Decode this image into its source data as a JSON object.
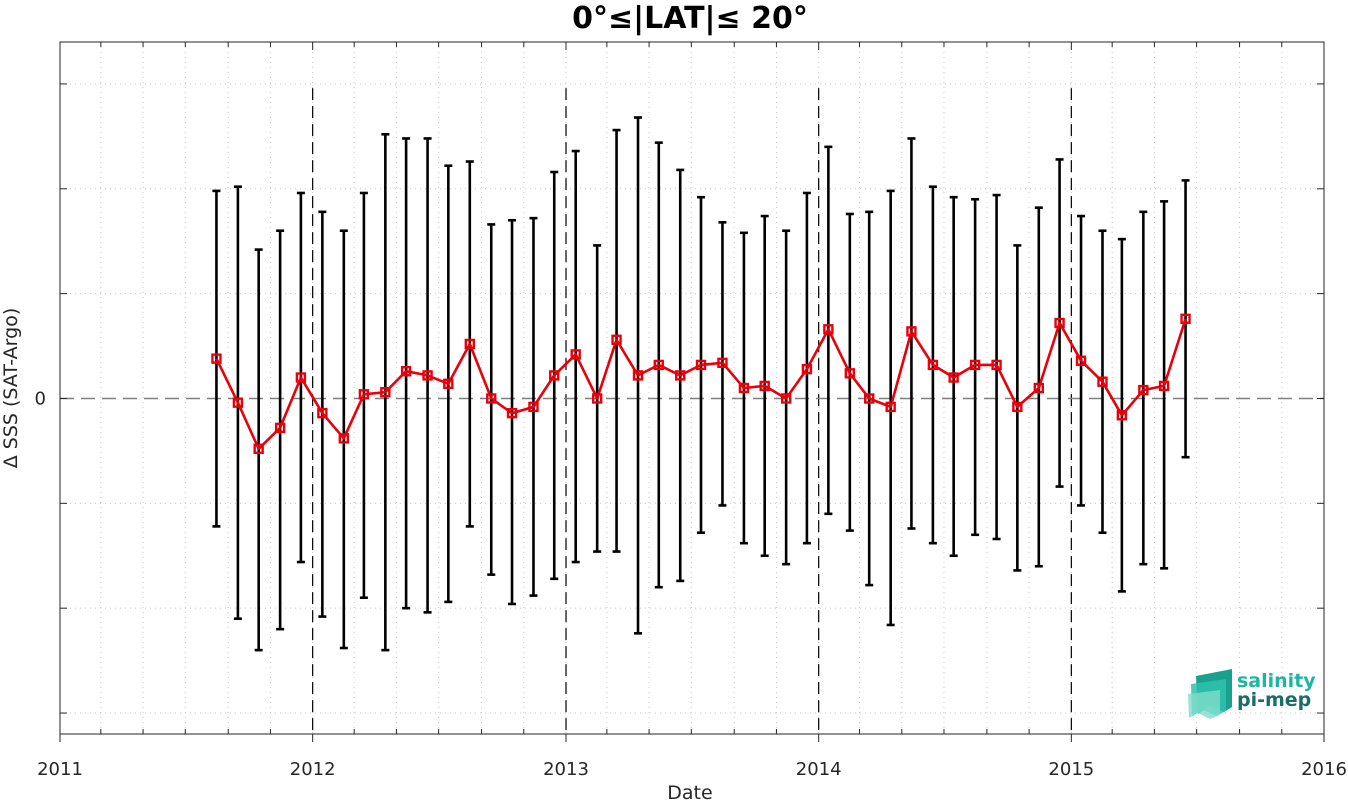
{
  "chart_data": {
    "type": "line",
    "title": "0°≤|LAT|≤ 20°",
    "xlabel": "Date",
    "ylabel": "Δ SSS (SAT-Argo)",
    "xlim": [
      "2011-01-01",
      "2016-01-01"
    ],
    "ylim": [
      -0.16,
      0.17
    ],
    "x_ticks": [
      {
        "date": "2011-01-01",
        "label": "2011"
      },
      {
        "date": "2012-01-01",
        "label": "2012"
      },
      {
        "date": "2013-01-01",
        "label": "2013"
      },
      {
        "date": "2014-01-01",
        "label": "2014"
      },
      {
        "date": "2015-01-01",
        "label": "2015"
      },
      {
        "date": "2016-01-01",
        "label": "2016"
      }
    ],
    "y_ticks": [
      {
        "value": 0,
        "label": "0"
      }
    ],
    "y_minor_ticks": [
      -0.15,
      -0.1,
      -0.05,
      0.05,
      0.1,
      0.15
    ],
    "zero_line": {
      "value": 0,
      "color": "#808080",
      "style": "dashed"
    },
    "year_markers": [
      "2012-01-01",
      "2013-01-01",
      "2014-01-01",
      "2015-01-01"
    ],
    "grid": "dotted",
    "series": [
      {
        "color": "#e8000b",
        "errorbar_color": "#000000",
        "marker": "square",
        "points": [
          {
            "x": "2011-08-15",
            "y": 0.019,
            "ymin": -0.061,
            "ymax": 0.099
          },
          {
            "x": "2011-09-15",
            "y": -0.002,
            "ymin": -0.105,
            "ymax": 0.101
          },
          {
            "x": "2011-10-15",
            "y": -0.024,
            "ymin": -0.12,
            "ymax": 0.071
          },
          {
            "x": "2011-11-15",
            "y": -0.014,
            "ymin": -0.11,
            "ymax": 0.08
          },
          {
            "x": "2011-12-15",
            "y": 0.01,
            "ymin": -0.078,
            "ymax": 0.098
          },
          {
            "x": "2012-01-15",
            "y": -0.007,
            "ymin": -0.104,
            "ymax": 0.089
          },
          {
            "x": "2012-02-15",
            "y": -0.019,
            "ymin": -0.119,
            "ymax": 0.08
          },
          {
            "x": "2012-03-15",
            "y": 0.002,
            "ymin": -0.095,
            "ymax": 0.098
          },
          {
            "x": "2012-04-15",
            "y": 0.003,
            "ymin": -0.12,
            "ymax": 0.126
          },
          {
            "x": "2012-05-15",
            "y": 0.013,
            "ymin": -0.1,
            "ymax": 0.124
          },
          {
            "x": "2012-06-15",
            "y": 0.011,
            "ymin": -0.102,
            "ymax": 0.124
          },
          {
            "x": "2012-07-15",
            "y": 0.007,
            "ymin": -0.097,
            "ymax": 0.111
          },
          {
            "x": "2012-08-15",
            "y": 0.026,
            "ymin": -0.061,
            "ymax": 0.113
          },
          {
            "x": "2012-09-15",
            "y": 0.0,
            "ymin": -0.084,
            "ymax": 0.083
          },
          {
            "x": "2012-10-15",
            "y": -0.007,
            "ymin": -0.098,
            "ymax": 0.085
          },
          {
            "x": "2012-11-15",
            "y": -0.004,
            "ymin": -0.094,
            "ymax": 0.086
          },
          {
            "x": "2012-12-15",
            "y": 0.011,
            "ymin": -0.086,
            "ymax": 0.108
          },
          {
            "x": "2013-01-15",
            "y": 0.021,
            "ymin": -0.078,
            "ymax": 0.118
          },
          {
            "x": "2013-02-15",
            "y": 0.0,
            "ymin": -0.073,
            "ymax": 0.073
          },
          {
            "x": "2013-03-15",
            "y": 0.028,
            "ymin": -0.073,
            "ymax": 0.128
          },
          {
            "x": "2013-04-15",
            "y": 0.011,
            "ymin": -0.112,
            "ymax": 0.134
          },
          {
            "x": "2013-05-15",
            "y": 0.016,
            "ymin": -0.09,
            "ymax": 0.122
          },
          {
            "x": "2013-06-15",
            "y": 0.011,
            "ymin": -0.087,
            "ymax": 0.109
          },
          {
            "x": "2013-07-15",
            "y": 0.016,
            "ymin": -0.064,
            "ymax": 0.096
          },
          {
            "x": "2013-08-15",
            "y": 0.017,
            "ymin": -0.051,
            "ymax": 0.084
          },
          {
            "x": "2013-09-15",
            "y": 0.005,
            "ymin": -0.069,
            "ymax": 0.079
          },
          {
            "x": "2013-10-15",
            "y": 0.006,
            "ymin": -0.075,
            "ymax": 0.087
          },
          {
            "x": "2013-11-15",
            "y": 0.0,
            "ymin": -0.079,
            "ymax": 0.08
          },
          {
            "x": "2013-12-15",
            "y": 0.014,
            "ymin": -0.069,
            "ymax": 0.098
          },
          {
            "x": "2014-01-15",
            "y": 0.033,
            "ymin": -0.055,
            "ymax": 0.12
          },
          {
            "x": "2014-02-15",
            "y": 0.012,
            "ymin": -0.063,
            "ymax": 0.088
          },
          {
            "x": "2014-03-15",
            "y": 0.0,
            "ymin": -0.089,
            "ymax": 0.089
          },
          {
            "x": "2014-04-15",
            "y": -0.004,
            "ymin": -0.108,
            "ymax": 0.099
          },
          {
            "x": "2014-05-15",
            "y": 0.032,
            "ymin": -0.062,
            "ymax": 0.124
          },
          {
            "x": "2014-06-15",
            "y": 0.016,
            "ymin": -0.069,
            "ymax": 0.101
          },
          {
            "x": "2014-07-15",
            "y": 0.01,
            "ymin": -0.075,
            "ymax": 0.096
          },
          {
            "x": "2014-08-15",
            "y": 0.016,
            "ymin": -0.065,
            "ymax": 0.095
          },
          {
            "x": "2014-09-15",
            "y": 0.016,
            "ymin": -0.067,
            "ymax": 0.097
          },
          {
            "x": "2014-10-15",
            "y": -0.004,
            "ymin": -0.082,
            "ymax": 0.073
          },
          {
            "x": "2014-11-15",
            "y": 0.005,
            "ymin": -0.08,
            "ymax": 0.091
          },
          {
            "x": "2014-12-15",
            "y": 0.036,
            "ymin": -0.042,
            "ymax": 0.114
          },
          {
            "x": "2015-01-15",
            "y": 0.018,
            "ymin": -0.051,
            "ymax": 0.087
          },
          {
            "x": "2015-02-15",
            "y": 0.008,
            "ymin": -0.064,
            "ymax": 0.08
          },
          {
            "x": "2015-03-15",
            "y": -0.008,
            "ymin": -0.092,
            "ymax": 0.076
          },
          {
            "x": "2015-04-15",
            "y": 0.004,
            "ymin": -0.079,
            "ymax": 0.089
          },
          {
            "x": "2015-05-15",
            "y": 0.006,
            "ymin": -0.081,
            "ymax": 0.094
          },
          {
            "x": "2015-06-15",
            "y": 0.038,
            "ymin": -0.028,
            "ymax": 0.104
          }
        ]
      }
    ]
  },
  "logo": {
    "line1": "salinity",
    "line2": "pi-mep",
    "color_line1": "#1fb5a0",
    "color_line2": "#1a6e68"
  }
}
